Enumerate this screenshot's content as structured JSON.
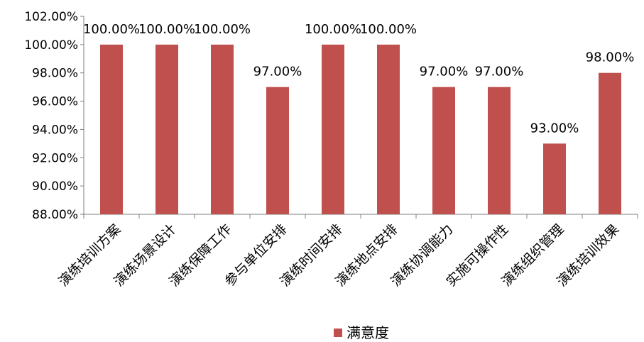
{
  "chart_data": {
    "type": "bar",
    "categories": [
      "演练培训方案",
      "演练场景设计",
      "演练保障工作",
      "参与单位安排",
      "演练时间安排",
      "演练地点安排",
      "演练协调能力",
      "实施可操作性",
      "演练组织管理",
      "演练培训效果"
    ],
    "series": [
      {
        "name": "满意度",
        "values": [
          100,
          100,
          100,
          97,
          100,
          100,
          97,
          97,
          93,
          98
        ],
        "color": "#c0504d"
      }
    ],
    "data_labels": [
      "100.00%",
      "100.00%",
      "100.00%",
      "97.00%",
      "100.00%",
      "100.00%",
      "97.00%",
      "97.00%",
      "93.00%",
      "98.00%"
    ],
    "y_ticks": [
      "88.00%",
      "90.00%",
      "92.00%",
      "94.00%",
      "96.00%",
      "98.00%",
      "100.00%",
      "102.00%"
    ],
    "ylim": [
      88,
      102
    ],
    "y_unit": "%",
    "legend": {
      "label": "满意度",
      "position": "bottom"
    },
    "grid": false
  }
}
